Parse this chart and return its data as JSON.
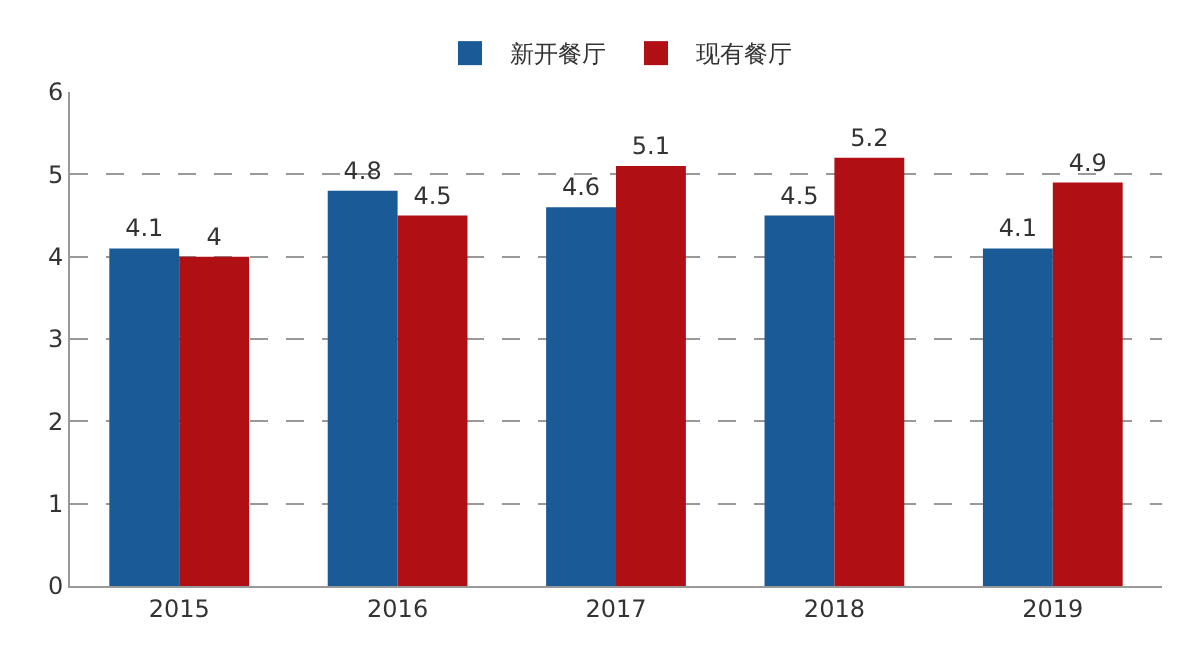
{
  "chart_data": {
    "type": "bar",
    "categories": [
      "2015",
      "2016",
      "2017",
      "2018",
      "2019"
    ],
    "series": [
      {
        "name": "新开餐厅",
        "color": "#1a5a96",
        "values": [
          4.1,
          4.8,
          4.6,
          4.5,
          4.1
        ]
      },
      {
        "name": "现有餐厅",
        "color": "#b01014",
        "values": [
          4.0,
          4.5,
          5.1,
          5.2,
          4.9
        ]
      }
    ],
    "ylim": [
      0,
      6
    ],
    "yticks": [
      0,
      1,
      2,
      3,
      4,
      5,
      6
    ],
    "grid": "y",
    "legend": "top",
    "data_labels": true
  }
}
